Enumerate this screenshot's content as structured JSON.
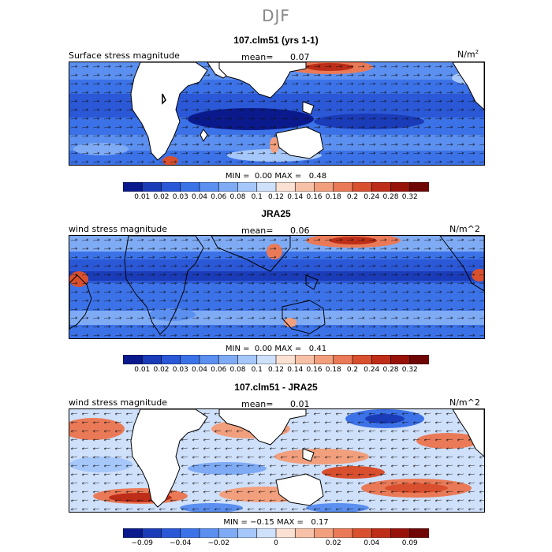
{
  "title": "DJF",
  "panels": [
    {
      "id": "model",
      "title": "107.clm51 (yrs 1-1)",
      "field_label": "Surface stress magnitude",
      "mean_label": "mean=",
      "mean_value": "0.07",
      "units_base": "N/m",
      "units_sup": "2",
      "min_label": "MIN =",
      "min_value": "0.00",
      "max_label": "MAX =",
      "max_value": "0.48",
      "levels": [
        "0.01",
        "0.02",
        "0.03",
        "0.04",
        "0.06",
        "0.08",
        "0.1",
        "0.12",
        "0.14",
        "0.16",
        "0.18",
        "0.2",
        "0.24",
        "0.28",
        "0.32"
      ],
      "colors": [
        "#0a1a8c",
        "#1b3cb8",
        "#2b58d6",
        "#3c72e8",
        "#5b8ff0",
        "#7fabf5",
        "#a6c7fa",
        "#cfe0fb",
        "#fbe0d4",
        "#f7c1a8",
        "#f29f7d",
        "#ea7a57",
        "#d9502f",
        "#bd2d18",
        "#98120a",
        "#6e0606"
      ],
      "tick_labels": [
        "0.01",
        "0.02",
        "0.03",
        "0.04",
        "0.06",
        "0.08",
        "0.1",
        "0.12",
        "0.14",
        "0.16",
        "0.18",
        "0.2",
        "0.24",
        "0.28",
        "0.32"
      ]
    },
    {
      "id": "obs",
      "title": "JRA25",
      "field_label": "wind stress magnitude",
      "mean_label": "mean=",
      "mean_value": "0.06",
      "units": "N/m^2",
      "min_label": "MIN =",
      "min_value": "0.00",
      "max_label": "MAX =",
      "max_value": "0.41",
      "levels": [
        "0.01",
        "0.02",
        "0.03",
        "0.04",
        "0.06",
        "0.08",
        "0.1",
        "0.12",
        "0.14",
        "0.16",
        "0.18",
        "0.2",
        "0.24",
        "0.28",
        "0.32"
      ],
      "colors": [
        "#0a1a8c",
        "#1b3cb8",
        "#2b58d6",
        "#3c72e8",
        "#5b8ff0",
        "#7fabf5",
        "#a6c7fa",
        "#cfe0fb",
        "#fbe0d4",
        "#f7c1a8",
        "#f29f7d",
        "#ea7a57",
        "#d9502f",
        "#bd2d18",
        "#98120a",
        "#6e0606"
      ],
      "tick_labels": [
        "0.01",
        "0.02",
        "0.03",
        "0.04",
        "0.06",
        "0.08",
        "0.1",
        "0.12",
        "0.14",
        "0.16",
        "0.18",
        "0.2",
        "0.24",
        "0.28",
        "0.32"
      ]
    },
    {
      "id": "diff",
      "title": "107.clm51 - JRA25",
      "field_label": "wind stress magnitude",
      "mean_label": "mean=",
      "mean_value": "0.01",
      "units": "N/m^2",
      "min_label": "MIN =",
      "min_value": "−0.15",
      "max_label": "MAX =",
      "max_value": "0.17",
      "colors": [
        "#0a1a8c",
        "#1b3cb8",
        "#2b58d6",
        "#3c72e8",
        "#5b8ff0",
        "#7fabf5",
        "#a6c7fa",
        "#cfe0fb",
        "#fbe0d4",
        "#f7c1a8",
        "#f29f7d",
        "#ea7a57",
        "#d9502f",
        "#bd2d18",
        "#98120a",
        "#6e0606"
      ],
      "tick_labels": [
        "−0.09",
        "−0.04",
        "−0.02",
        "0",
        "0.02",
        "0.04",
        "0.09"
      ],
      "tick_boundaries": [
        1,
        3,
        5,
        8,
        11,
        13,
        15
      ]
    }
  ]
}
